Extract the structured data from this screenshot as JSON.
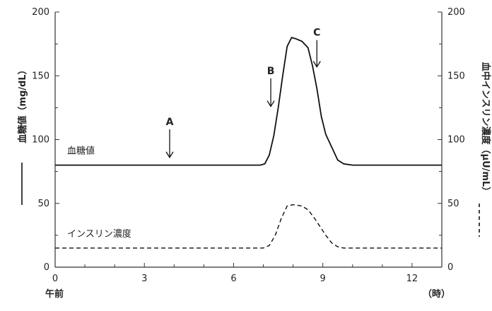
{
  "chart_data": {
    "type": "line",
    "x_ticks": [
      0,
      3,
      6,
      9,
      12
    ],
    "xlim": [
      0,
      13
    ],
    "ylim": [
      0,
      200
    ],
    "y_left_ticks": [
      0,
      50,
      100,
      150,
      200
    ],
    "y_right_ticks": [
      0,
      50,
      100,
      150,
      200
    ],
    "ylabel_left": "血糖値（mg/dL）",
    "ylabel_right": "血中インスリン濃度（μU/mL）",
    "x_start_label": "午前",
    "x_unit_label": "（時）",
    "series": [
      {
        "name": "血糖値",
        "style": "solid",
        "x": [
          0,
          6.9,
          7.05,
          7.2,
          7.35,
          7.5,
          7.65,
          7.8,
          7.95,
          8.1,
          8.3,
          8.5,
          8.65,
          8.8,
          8.95,
          9.1,
          9.3,
          9.5,
          9.7,
          10,
          13
        ],
        "y": [
          80,
          80,
          81,
          88,
          103,
          125,
          150,
          173,
          180,
          179,
          177,
          172,
          158,
          140,
          118,
          104,
          94,
          84,
          81,
          80,
          80
        ]
      },
      {
        "name": "インスリン濃度",
        "style": "dashed",
        "x": [
          0,
          7,
          7.2,
          7.4,
          7.6,
          7.8,
          8.0,
          8.3,
          8.5,
          8.7,
          8.9,
          9.1,
          9.3,
          9.5,
          9.7,
          10,
          13
        ],
        "y": [
          15,
          15,
          17,
          25,
          38,
          48,
          49,
          48,
          45,
          39,
          32,
          25,
          19,
          16,
          15,
          15,
          15
        ]
      }
    ],
    "markers": [
      {
        "label": "A",
        "x": 3.85,
        "y_from": 108,
        "y_to": 86
      },
      {
        "label": "B",
        "x": 7.25,
        "y_from": 148,
        "y_to": 126
      },
      {
        "label": "C",
        "x": 8.8,
        "y_from": 178,
        "y_to": 157
      }
    ],
    "legend": {
      "left_line_style": "solid",
      "right_line_style": "dashed"
    }
  }
}
